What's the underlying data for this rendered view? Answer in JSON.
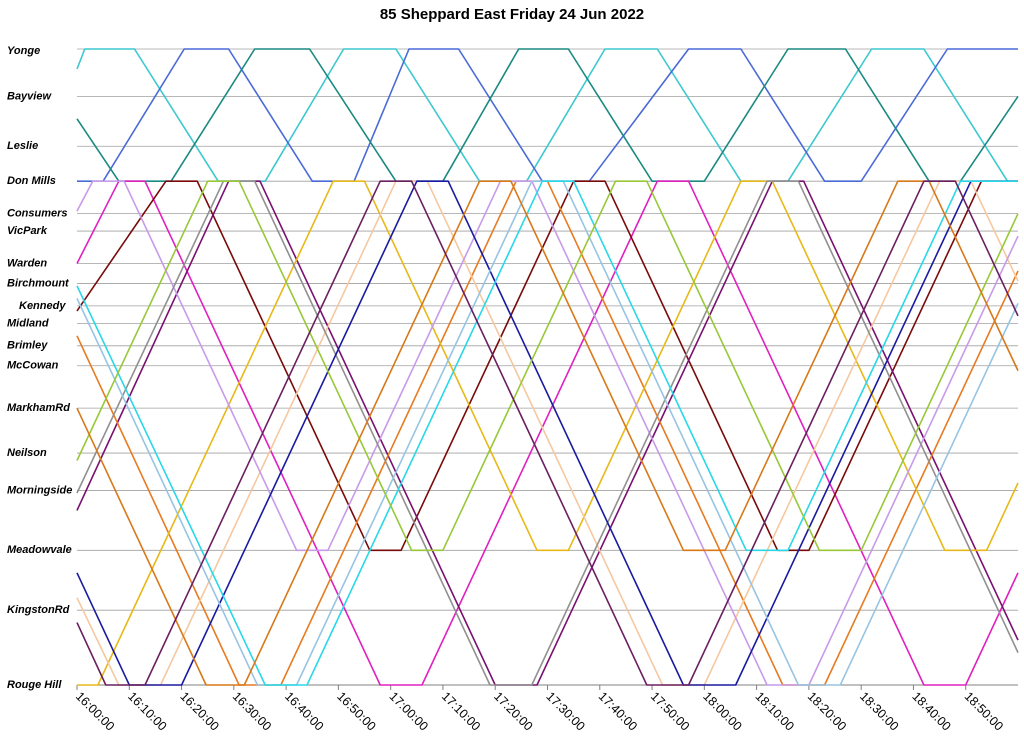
{
  "chart_data": {
    "type": "line",
    "title": "85 Sheppard East Friday 24 Jun 2022",
    "xlim": [
      960,
      1140
    ],
    "xticks": [
      {
        "value": 960,
        "label": "16:00:00"
      },
      {
        "value": 970,
        "label": "16:10:00"
      },
      {
        "value": 980,
        "label": "16:20:00"
      },
      {
        "value": 990,
        "label": "16:30:00"
      },
      {
        "value": 1000,
        "label": "16:40:00"
      },
      {
        "value": 1010,
        "label": "16:50:00"
      },
      {
        "value": 1020,
        "label": "17:00:00"
      },
      {
        "value": 1030,
        "label": "17:10:00"
      },
      {
        "value": 1040,
        "label": "17:20:00"
      },
      {
        "value": 1050,
        "label": "17:30:00"
      },
      {
        "value": 1060,
        "label": "17:40:00"
      },
      {
        "value": 1070,
        "label": "17:50:00"
      },
      {
        "value": 1080,
        "label": "18:00:00"
      },
      {
        "value": 1090,
        "label": "18:10:00"
      },
      {
        "value": 1100,
        "label": "18:20:00"
      },
      {
        "value": 1110,
        "label": "18:30:00"
      },
      {
        "value": 1120,
        "label": "18:40:00"
      },
      {
        "value": 1130,
        "label": "18:50:00"
      }
    ],
    "ylim": [
      25.5,
      0
    ],
    "yticks": [
      {
        "value": 0,
        "label": "Yonge"
      },
      {
        "value": 1.9,
        "label": "Bayview"
      },
      {
        "value": 3.9,
        "label": "Leslie"
      },
      {
        "value": 5.3,
        "label": "Don Mills"
      },
      {
        "value": 6.6,
        "label": "Consumers"
      },
      {
        "value": 7.3,
        "label": "VicPark"
      },
      {
        "value": 8.6,
        "label": "Warden"
      },
      {
        "value": 9.4,
        "label": "Birchmount"
      },
      {
        "value": 10.3,
        "label": "Kennedy"
      },
      {
        "value": 11.0,
        "label": "Midland"
      },
      {
        "value": 11.9,
        "label": "Brimley"
      },
      {
        "value": 12.7,
        "label": "McCowan"
      },
      {
        "value": 14.4,
        "label": "MarkhamRd"
      },
      {
        "value": 16.2,
        "label": "Neilson"
      },
      {
        "value": 17.7,
        "label": "Morningside"
      },
      {
        "value": 20.1,
        "label": "Meadowvale"
      },
      {
        "value": 22.5,
        "label": "KingstonRd"
      },
      {
        "value": 25.5,
        "label": "Rouge Hill"
      }
    ],
    "grid": true,
    "series": [
      {
        "color": "#3cc8d0",
        "x": [
          960,
          961.5,
          971,
          987,
          996,
          1011,
          1021,
          1037,
          1046,
          1061,
          1071,
          1087,
          1096,
          1112,
          1122,
          1138,
          1140
        ],
        "values": [
          0.8,
          0,
          0,
          5.3,
          5.3,
          0,
          0,
          5.3,
          5.3,
          0,
          0,
          5.3,
          5.3,
          0,
          0,
          5.3,
          5.3
        ]
      },
      {
        "color": "#4a6ad8",
        "x": [
          960,
          965,
          980.5,
          989,
          1005,
          1013,
          1023.5,
          1033,
          1049,
          1058,
          1077,
          1087,
          1103,
          1110,
          1126.5,
          1140
        ],
        "values": [
          5.3,
          5.3,
          0,
          0,
          5.3,
          5.3,
          0,
          0,
          5.3,
          5.3,
          0,
          0,
          5.3,
          5.3,
          0,
          0
        ]
      },
      {
        "color": "#1a8a80",
        "x": [
          960,
          968,
          978,
          994,
          1004.5,
          1021,
          1030,
          1044.5,
          1054,
          1070,
          1080,
          1096,
          1107,
          1123,
          1129,
          1140
        ],
        "values": [
          2.8,
          5.3,
          5.3,
          0,
          0,
          5.3,
          5.3,
          0,
          0,
          5.3,
          5.3,
          0,
          0,
          5.3,
          5.3,
          1.9
        ]
      },
      {
        "color": "#e020c0",
        "x": [
          960,
          968,
          973,
          1018,
          1026,
          1071,
          1077,
          1122,
          1130,
          1140
        ],
        "values": [
          8.6,
          5.3,
          5.3,
          25.5,
          25.5,
          5.3,
          5.3,
          25.5,
          25.5,
          21.0
        ]
      },
      {
        "color": "#7a0a0a",
        "x": [
          960,
          977,
          983,
          1016,
          1022,
          1055,
          1061,
          1094,
          1100,
          1133,
          1140
        ],
        "values": [
          10.5,
          5.3,
          5.3,
          20.1,
          20.1,
          5.3,
          5.3,
          20.1,
          20.1,
          5.3,
          5.3
        ]
      },
      {
        "color": "#7a1070",
        "x": [
          960,
          989,
          995,
          1040,
          1048,
          1093,
          1099,
          1140
        ],
        "values": [
          18.5,
          5.3,
          5.3,
          25.5,
          25.5,
          5.3,
          5.3,
          23.7
        ]
      },
      {
        "color": "#e87a20",
        "x": [
          960,
          991,
          999,
          1044,
          1050,
          1095,
          1103,
          1140
        ],
        "values": [
          11.5,
          25.5,
          25.5,
          5.3,
          5.3,
          25.5,
          25.5,
          8.9
        ]
      },
      {
        "color": "#e8b818",
        "x": [
          960,
          964,
          1009,
          1015,
          1048,
          1054,
          1087,
          1093,
          1126,
          1134,
          1140
        ],
        "values": [
          25.5,
          25.5,
          5.3,
          5.3,
          20.1,
          20.1,
          5.3,
          5.3,
          20.1,
          20.1,
          17.4
        ]
      },
      {
        "color": "#f5c8a0",
        "x": [
          960,
          968,
          976,
          1021,
          1027,
          1072,
          1080,
          1125,
          1131,
          1140
        ],
        "values": [
          22,
          25.5,
          25.5,
          5.3,
          5.3,
          25.5,
          25.5,
          5.3,
          5.3,
          9.3
        ]
      },
      {
        "color": "#c89ae8",
        "x": [
          960,
          963,
          969,
          1002,
          1008,
          1041,
          1047,
          1092,
          1100,
          1140
        ],
        "values": [
          6.5,
          5.3,
          5.3,
          20.1,
          20.1,
          5.3,
          5.3,
          25.5,
          25.5,
          7.5
        ]
      },
      {
        "color": "#909090",
        "x": [
          960,
          988,
          994,
          1039,
          1047,
          1092,
          1098,
          1140
        ],
        "values": [
          17.8,
          5.3,
          5.3,
          25.5,
          25.5,
          5.3,
          5.3,
          24.2
        ]
      },
      {
        "color": "#1a1aa0",
        "x": [
          960,
          970,
          980,
          1025,
          1031,
          1076,
          1086,
          1131,
          1140
        ],
        "values": [
          21,
          25.5,
          25.5,
          5.3,
          5.3,
          25.5,
          25.5,
          5.3,
          5.3
        ]
      },
      {
        "color": "#98c4e4",
        "x": [
          960,
          994.5,
          1002,
          1047,
          1053,
          1098,
          1106,
          1140
        ],
        "values": [
          10,
          25.5,
          25.5,
          5.3,
          5.3,
          25.5,
          25.5,
          10.2
        ]
      },
      {
        "color": "#28d8e8",
        "x": [
          960,
          996,
          1004,
          1049,
          1055,
          1088,
          1096,
          1129,
          1140
        ],
        "values": [
          9.5,
          25.5,
          25.5,
          5.3,
          5.3,
          20.1,
          20.1,
          5.3,
          5.3
        ]
      },
      {
        "color": "#98c838",
        "x": [
          960,
          985,
          991,
          1024,
          1030,
          1063,
          1069,
          1102,
          1110,
          1140
        ],
        "values": [
          16.5,
          5.3,
          5.3,
          20.1,
          20.1,
          5.3,
          5.3,
          20.1,
          20.1,
          6.6
        ]
      },
      {
        "color": "#d87818",
        "x": [
          960,
          984.7,
          992,
          1037,
          1043,
          1076,
          1084,
          1117,
          1123,
          1140
        ],
        "values": [
          14.4,
          25.5,
          25.5,
          5.3,
          5.3,
          20.1,
          20.1,
          5.3,
          5.3,
          12.9
        ]
      },
      {
        "color": "#6a2060",
        "x": [
          960,
          965.5,
          973,
          1018,
          1024,
          1069,
          1077,
          1122,
          1128,
          1140
        ],
        "values": [
          23,
          25.5,
          25.5,
          5.3,
          5.3,
          25.5,
          25.5,
          5.3,
          5.3,
          10.7
        ]
      }
    ]
  }
}
